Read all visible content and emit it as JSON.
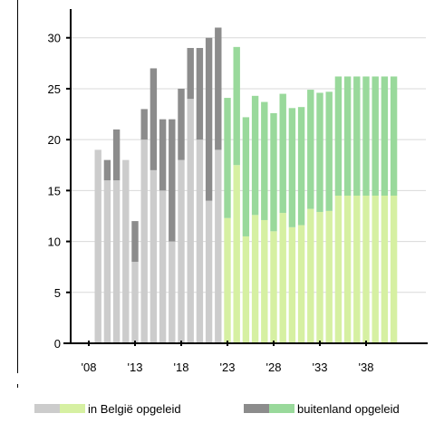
{
  "chart_data": {
    "type": "bar",
    "stacked": true,
    "title": "",
    "xlabel": "",
    "ylabel": "",
    "ylim": [
      0,
      33
    ],
    "yticks": [
      0,
      5,
      10,
      15,
      20,
      25,
      30
    ],
    "xtick_labels": [
      {
        "year": 2008,
        "label": "'08"
      },
      {
        "year": 2013,
        "label": "'13"
      },
      {
        "year": 2018,
        "label": "'18"
      },
      {
        "year": 2023,
        "label": "'23"
      },
      {
        "year": 2028,
        "label": "'28"
      },
      {
        "year": 2033,
        "label": "'33"
      },
      {
        "year": 2038,
        "label": "'38"
      }
    ],
    "grid": "horizontal",
    "legend_position": "bottom",
    "forecast_start_year": 2023,
    "colors": {
      "belgie_historic": "#cccccc",
      "buitenland_historic": "#8c8c8c",
      "belgie_forecast": "#d6f0a2",
      "buitenland_forecast": "#99d99b",
      "grid": "#d9d9d9",
      "axis": "#000000"
    },
    "x": [
      2009,
      2010,
      2011,
      2012,
      2013,
      2014,
      2015,
      2016,
      2017,
      2018,
      2019,
      2020,
      2021,
      2022,
      2023,
      2024,
      2025,
      2026,
      2027,
      2028,
      2029,
      2030,
      2031,
      2032,
      2033,
      2034,
      2035,
      2036,
      2037,
      2038,
      2039,
      2040,
      2041
    ],
    "series": [
      {
        "name": "in België opgeleid",
        "values": [
          19,
          16,
          16,
          18,
          8,
          20,
          17,
          15,
          10,
          18,
          24,
          20,
          14,
          19,
          12.3,
          17.5,
          10.5,
          12.6,
          12.1,
          11,
          12.8,
          11.4,
          11.6,
          13.2,
          12.9,
          13,
          14.5,
          14.5,
          14.5,
          14.5,
          14.5,
          14.5,
          14.5
        ]
      },
      {
        "name": "buitenland opgeleid",
        "values": [
          0,
          2,
          5,
          0,
          4,
          3,
          10,
          7,
          12,
          7,
          5,
          9,
          16,
          12,
          11.8,
          11.6,
          11.7,
          11.7,
          11.6,
          11.6,
          11.7,
          11.7,
          11.6,
          11.7,
          11.7,
          11.7,
          11.7,
          11.7,
          11.7,
          11.7,
          11.7,
          11.7,
          11.7
        ]
      }
    ]
  }
}
